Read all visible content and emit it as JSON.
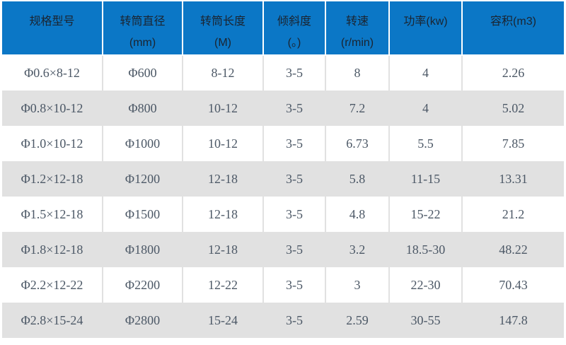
{
  "colors": {
    "header_bg": "#0b77c6",
    "header_text": "#1b2430",
    "body_text": "#4c5866",
    "row_bg": "#ffffff",
    "row_alt_bg": "#e1e1e1",
    "divider": "#e1e1e1",
    "header_gap": "#ffffff"
  },
  "table": {
    "headers": [
      "规格型号",
      "转筒直径\n(mm)",
      "转筒长度\n(M)",
      "倾斜度\n(。)",
      "转速\n(r/min)",
      "功率(kw)",
      "容积(m3)"
    ],
    "rows": [
      [
        "Φ0.6×8-12",
        "Φ600",
        "8-12",
        "3-5",
        "8",
        "4",
        "2.26"
      ],
      [
        "Φ0.8×10-12",
        "Φ800",
        "10-12",
        "3-5",
        "7.2",
        "4",
        "5.02"
      ],
      [
        "Φ1.0×10-12",
        "Φ1000",
        "10-12",
        "3-5",
        "6.73",
        "5.5",
        "7.85"
      ],
      [
        "Φ1.2×12-18",
        "Φ1200",
        "12-18",
        "3-5",
        "5.8",
        "11-15",
        "13.31"
      ],
      [
        "Φ1.5×12-18",
        "Φ1500",
        "12-18",
        "3-5",
        "4.8",
        "15-22",
        "21.2"
      ],
      [
        "Φ1.8×12-18",
        "Φ1800",
        "12-18",
        "3-5",
        "3.2",
        "18.5-30",
        "48.22"
      ],
      [
        "Φ2.2×12-22",
        "Φ2200",
        "12-22",
        "3-5",
        "3",
        "22-30",
        "70.43"
      ],
      [
        "Φ2.8×15-24",
        "Φ2800",
        "15-24",
        "3-5",
        "2.59",
        "30-55",
        "147.8"
      ]
    ]
  }
}
